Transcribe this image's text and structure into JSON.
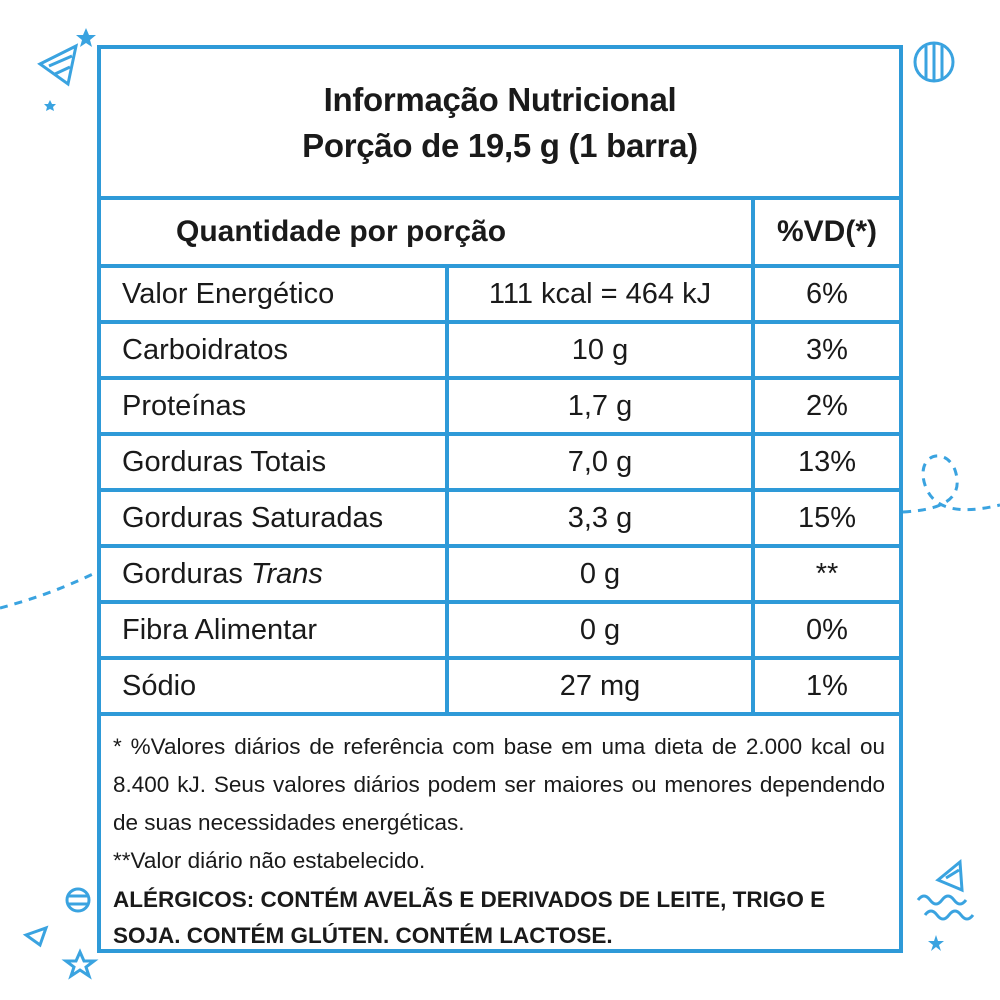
{
  "label": {
    "title": "Informação Nutricional",
    "serving": "Porção de 19,5 g (1 barra)",
    "header": {
      "quantity": "Quantidade por porção",
      "daily_value": "%VD(*)"
    },
    "rows": [
      {
        "name": "Valor Energético",
        "amount": "111 kcal = 464 kJ",
        "dv": "6%"
      },
      {
        "name": "Carboidratos",
        "amount": "10 g",
        "dv": "3%"
      },
      {
        "name": "Proteínas",
        "amount": "1,7 g",
        "dv": "2%"
      },
      {
        "name": "Gorduras Totais",
        "amount": "7,0 g",
        "dv": "13%"
      },
      {
        "name": "Gorduras Saturadas",
        "amount": "3,3 g",
        "dv": "15%"
      },
      {
        "name": "Gorduras",
        "name_italic": "Trans",
        "amount": "0 g",
        "dv": "**"
      },
      {
        "name": "Fibra Alimentar",
        "amount": "0 g",
        "dv": "0%"
      },
      {
        "name": "Sódio",
        "amount": "27 mg",
        "dv": "1%"
      }
    ],
    "footnote_dv": "* %Valores diários de referência com base em uma dieta de 2.000 kcal ou 8.400 kJ. Seus valores diários podem ser maiores ou menores dependendo de suas necessidades energéticas.",
    "footnote_na": "**Valor diário não estabelecido.",
    "allergens": "ALÉRGICOS: CONTÉM AVELÃS E DERIVADOS DE LEITE, TRIGO E SOJA. CONTÉM GLÚTEN. CONTÉM LACTOSE."
  },
  "colors": {
    "border": "#2e9ad8",
    "text": "#1a1a1a",
    "decor": "#3aa3e0"
  },
  "decorations": [
    "party-hat-icon",
    "striped-ball-icon",
    "star-icon",
    "dashed-streamer-line",
    "squiggle-icon"
  ]
}
